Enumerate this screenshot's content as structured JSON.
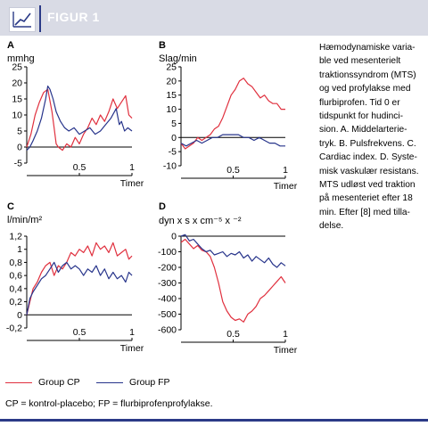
{
  "figure": {
    "title": "FIGUR 1",
    "icon": "line-chart-icon"
  },
  "colors": {
    "group_cp": "#e0303e",
    "group_fp": "#27348b",
    "header_bg": "#d9dbe5",
    "rule": "#2b3a87"
  },
  "caption": [
    "Hæmodynamiske varia-",
    "ble ved mesenterielt",
    "traktionssyndrom (MTS)",
    "og ved profylakse med",
    "flurbiprofen. Tid 0 er",
    "tidspunkt for hudinci-",
    "sion. A. Middelarterie-",
    "tryk. B. Pulsfrekvens. C.",
    "Cardiac index. D. Syste-",
    "misk vaskulær resistans.",
    "MTS udløst ved traktion",
    "på mesenteriet efter 18",
    "min. Efter [8] med tilla-",
    "delse."
  ],
  "legend": {
    "cp": "Group CP",
    "fp": "Group FP"
  },
  "footnote": "CP = kontrol-placebo; FP = flurbiprofenprofylakse.",
  "chart_data": [
    {
      "type": "line",
      "panel": "A",
      "ylabel": "mmhg",
      "xlabel": "Timer",
      "xlim": [
        0,
        1
      ],
      "ylim": [
        -5,
        25
      ],
      "xticks": [
        0.5,
        1
      ],
      "xtick_labels": [
        "0.5",
        "1"
      ],
      "yticks": [
        -5,
        0,
        5,
        10,
        15,
        20,
        25
      ],
      "ytick_labels": [
        "-5",
        "0",
        "5",
        "10",
        "15",
        "20",
        "25"
      ],
      "series": [
        {
          "name": "Group CP",
          "x": [
            0,
            0.04,
            0.08,
            0.12,
            0.16,
            0.2,
            0.24,
            0.26,
            0.28,
            0.3,
            0.34,
            0.38,
            0.42,
            0.46,
            0.5,
            0.54,
            0.58,
            0.62,
            0.66,
            0.7,
            0.74,
            0.78,
            0.82,
            0.86,
            0.9,
            0.94,
            0.97,
            1.0
          ],
          "y": [
            0,
            4,
            10,
            14,
            17,
            18,
            11,
            6,
            1,
            0,
            -1,
            1,
            0,
            3,
            1,
            4,
            6,
            9,
            7,
            10,
            8,
            11,
            15,
            12,
            14,
            16,
            10,
            9
          ]
        },
        {
          "name": "Group FP",
          "x": [
            0,
            0.03,
            0.06,
            0.1,
            0.14,
            0.18,
            0.2,
            0.22,
            0.25,
            0.28,
            0.32,
            0.36,
            0.4,
            0.45,
            0.5,
            0.55,
            0.6,
            0.65,
            0.7,
            0.75,
            0.8,
            0.85,
            0.88,
            0.9,
            0.93,
            0.96,
            1.0
          ],
          "y": [
            -1,
            0,
            2,
            5,
            9,
            15,
            19,
            18,
            15,
            11,
            8,
            6,
            5,
            6,
            4,
            5,
            6,
            4,
            5,
            7,
            9,
            12,
            7,
            8,
            5,
            6,
            5
          ]
        }
      ]
    },
    {
      "type": "line",
      "panel": "B",
      "ylabel": "Slag/min",
      "xlabel": "Timer",
      "xlim": [
        0,
        1
      ],
      "ylim": [
        -10,
        25
      ],
      "xticks": [
        0.5,
        1
      ],
      "xtick_labels": [
        "0.5",
        "1"
      ],
      "yticks": [
        -10,
        -5,
        0,
        5,
        10,
        15,
        20,
        25
      ],
      "ytick_labels": [
        "-10",
        "-5",
        "0",
        "5",
        "10",
        "15",
        "20",
        "25"
      ],
      "series": [
        {
          "name": "Group CP",
          "x": [
            0,
            0.04,
            0.08,
            0.12,
            0.16,
            0.2,
            0.24,
            0.28,
            0.32,
            0.36,
            0.4,
            0.44,
            0.48,
            0.52,
            0.56,
            0.6,
            0.64,
            0.68,
            0.72,
            0.76,
            0.8,
            0.84,
            0.88,
            0.92,
            0.96,
            1.0
          ],
          "y": [
            -2,
            -4,
            -3,
            -2,
            0,
            -1,
            0,
            1,
            3,
            4,
            7,
            11,
            15,
            17,
            20,
            21,
            19,
            18,
            16,
            14,
            15,
            13,
            12,
            12,
            10,
            10
          ]
        },
        {
          "name": "Group FP",
          "x": [
            0,
            0.05,
            0.1,
            0.15,
            0.2,
            0.25,
            0.3,
            0.35,
            0.4,
            0.45,
            0.5,
            0.55,
            0.6,
            0.65,
            0.7,
            0.75,
            0.8,
            0.85,
            0.9,
            0.95,
            1.0
          ],
          "y": [
            -2,
            -3,
            -2,
            -1,
            -2,
            -1,
            0,
            0,
            1,
            1,
            1,
            1,
            0,
            0,
            -1,
            0,
            -1,
            -2,
            -2,
            -3,
            -3
          ]
        }
      ]
    },
    {
      "type": "line",
      "panel": "C",
      "ylabel": "l/min/m²",
      "xlabel": "Timer",
      "xlim": [
        0,
        1
      ],
      "ylim": [
        -0.2,
        1.2
      ],
      "xticks": [
        0.5,
        1
      ],
      "xtick_labels": [
        "0.5",
        "1"
      ],
      "yticks": [
        -0.2,
        0,
        0.2,
        0.4,
        0.6,
        0.8,
        1.0,
        1.2
      ],
      "ytick_labels": [
        "-0,2",
        "0",
        "0,2",
        "0,4",
        "0,6",
        "0,8",
        "1",
        "1,2"
      ],
      "series": [
        {
          "name": "Group CP",
          "x": [
            0,
            0.03,
            0.06,
            0.1,
            0.14,
            0.18,
            0.22,
            0.26,
            0.3,
            0.34,
            0.38,
            0.42,
            0.46,
            0.5,
            0.54,
            0.58,
            0.62,
            0.66,
            0.7,
            0.74,
            0.78,
            0.82,
            0.86,
            0.9,
            0.94,
            0.97,
            1.0
          ],
          "y": [
            0,
            0.2,
            0.4,
            0.5,
            0.65,
            0.75,
            0.8,
            0.6,
            0.75,
            0.7,
            0.8,
            0.95,
            0.9,
            1.0,
            0.95,
            1.05,
            0.9,
            1.1,
            1.0,
            1.05,
            0.95,
            1.1,
            0.9,
            0.95,
            1.0,
            0.85,
            0.9
          ]
        },
        {
          "name": "Group FP",
          "x": [
            0,
            0.03,
            0.06,
            0.1,
            0.14,
            0.18,
            0.22,
            0.26,
            0.3,
            0.34,
            0.38,
            0.42,
            0.46,
            0.5,
            0.54,
            0.58,
            0.62,
            0.66,
            0.7,
            0.74,
            0.78,
            0.82,
            0.86,
            0.9,
            0.94,
            0.97,
            1.0
          ],
          "y": [
            0,
            0.25,
            0.35,
            0.45,
            0.55,
            0.6,
            0.7,
            0.8,
            0.65,
            0.75,
            0.8,
            0.7,
            0.75,
            0.7,
            0.6,
            0.7,
            0.65,
            0.75,
            0.6,
            0.7,
            0.55,
            0.65,
            0.55,
            0.6,
            0.5,
            0.65,
            0.6
          ]
        }
      ]
    },
    {
      "type": "line",
      "panel": "D",
      "ylabel": "dyn x s x cm⁻⁵ x ⁻²",
      "xlabel": "Timer",
      "xlim": [
        0,
        1
      ],
      "ylim": [
        -600,
        0
      ],
      "xticks": [
        0.5,
        1
      ],
      "xtick_labels": [
        "0.5",
        "1"
      ],
      "yticks": [
        -600,
        -500,
        -400,
        -300,
        -200,
        -100,
        0
      ],
      "ytick_labels": [
        "-600",
        "-500",
        "-400",
        "-300",
        "-200",
        "-100",
        "0"
      ],
      "series": [
        {
          "name": "Group CP",
          "x": [
            0,
            0.04,
            0.08,
            0.12,
            0.16,
            0.2,
            0.24,
            0.28,
            0.32,
            0.36,
            0.4,
            0.44,
            0.48,
            0.52,
            0.56,
            0.6,
            0.64,
            0.68,
            0.72,
            0.76,
            0.8,
            0.84,
            0.88,
            0.92,
            0.96,
            1.0
          ],
          "y": [
            -40,
            -20,
            -50,
            -80,
            -60,
            -90,
            -100,
            -130,
            -200,
            -300,
            -420,
            -480,
            -520,
            -540,
            -530,
            -550,
            -500,
            -480,
            -450,
            -400,
            -380,
            -350,
            -320,
            -290,
            -260,
            -300
          ]
        },
        {
          "name": "Group FP",
          "x": [
            0,
            0.04,
            0.08,
            0.12,
            0.16,
            0.2,
            0.24,
            0.28,
            0.32,
            0.36,
            0.4,
            0.44,
            0.48,
            0.52,
            0.56,
            0.6,
            0.64,
            0.68,
            0.72,
            0.76,
            0.8,
            0.84,
            0.88,
            0.92,
            0.96,
            1.0
          ],
          "y": [
            0,
            10,
            -30,
            -20,
            -50,
            -80,
            -100,
            -90,
            -120,
            -110,
            -100,
            -130,
            -110,
            -120,
            -100,
            -140,
            -120,
            -160,
            -130,
            -150,
            -170,
            -140,
            -180,
            -200,
            -170,
            -190
          ]
        }
      ]
    }
  ]
}
